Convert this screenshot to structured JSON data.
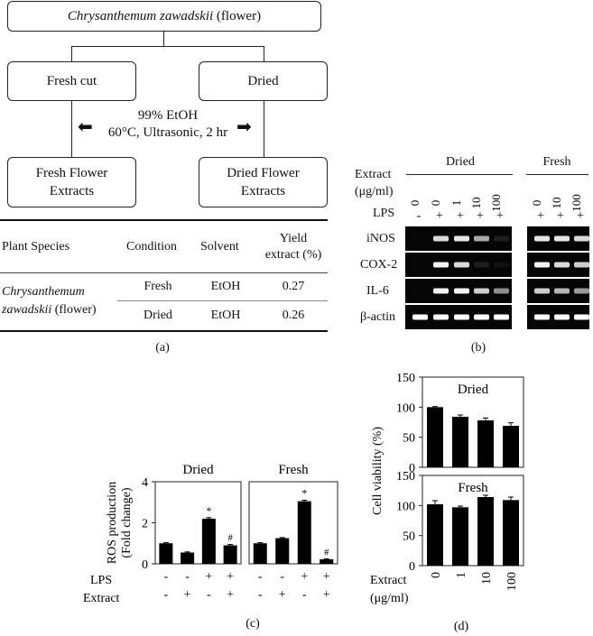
{
  "panel_a": {
    "top_box": {
      "species": "Chrysanthemum zawadskii",
      "part": "(flower)"
    },
    "left_box": "Fresh cut",
    "right_box": "Dried",
    "method_line1": "99% EtOH",
    "method_line2": "60°C, Ultrasonic, 2 hr",
    "left_extract": [
      "Fresh Flower",
      "Extracts"
    ],
    "right_extract": [
      "Dried Flower",
      "Extracts"
    ],
    "table": {
      "headers": [
        "Plant Species",
        "Condition",
        "Solvent",
        "Yield",
        "extract (%)"
      ],
      "species_italic": [
        "Chrysanthemum",
        "zawadskii"
      ],
      "species_suffix": "(flower)",
      "rows": [
        {
          "condition": "Fresh",
          "solvent": "EtOH",
          "yield": "0.27"
        },
        {
          "condition": "Dried",
          "solvent": "EtOH",
          "yield": "0.26"
        }
      ]
    },
    "label": "(a)"
  },
  "panel_b": {
    "dried_title": "Dried",
    "fresh_title": "Fresh",
    "extract_label": [
      "Extract",
      "(μg/ml)"
    ],
    "lps_label": "LPS",
    "dried_conc": [
      "0",
      "0",
      "1",
      "10",
      "100"
    ],
    "dried_lps": [
      "-",
      "+",
      "+",
      "+",
      "+"
    ],
    "fresh_conc": [
      "0",
      "10",
      "100"
    ],
    "fresh_lps": [
      "+",
      "+",
      "+"
    ],
    "genes": [
      "iNOS",
      "COX-2",
      "IL-6",
      "β-actin"
    ],
    "band_intensity": {
      "dried": [
        [
          0,
          0.85,
          0.9,
          0.65,
          0.1
        ],
        [
          0,
          0.95,
          0.85,
          0.1,
          0.05
        ],
        [
          0,
          0.95,
          0.95,
          0.8,
          0.55
        ],
        [
          1,
          1,
          1,
          1,
          1
        ]
      ],
      "fresh": [
        [
          0.9,
          0.9,
          0.85
        ],
        [
          0.95,
          0.85,
          0.8
        ],
        [
          0.8,
          0.7,
          0.6
        ],
        [
          1,
          1,
          1
        ]
      ]
    },
    "label": "(b)"
  },
  "chart_data": [
    {
      "type": "bar",
      "panel": "c",
      "ylabel": "ROS production (Fold change)",
      "ylim": [
        0,
        4
      ],
      "yticks": [
        0,
        2,
        4
      ],
      "row_labels": [
        "LPS",
        "Extract"
      ],
      "lps": [
        "-",
        "-",
        "+",
        "+"
      ],
      "extract": [
        "-",
        "+",
        "-",
        "+"
      ],
      "subplots": [
        {
          "title": "Dried",
          "values": [
            1.0,
            0.55,
            2.2,
            0.9
          ],
          "errors": [
            0.03,
            0.03,
            0.05,
            0.04
          ],
          "marks": [
            "",
            "",
            "*",
            "#"
          ]
        },
        {
          "title": "Fresh",
          "values": [
            1.0,
            1.25,
            3.05,
            0.22
          ],
          "errors": [
            0.03,
            0.03,
            0.05,
            0.03
          ],
          "marks": [
            "",
            "",
            "*",
            "#"
          ]
        }
      ],
      "bar_color": "#000000",
      "label": "(c)"
    },
    {
      "type": "bar",
      "panel": "d",
      "ylabel": "Cell viability (%)",
      "ylim": [
        0,
        150
      ],
      "yticks": [
        0,
        50,
        100,
        150
      ],
      "xlabel": "Extract (μg/ml)",
      "categories": [
        "0",
        "1",
        "10",
        "100"
      ],
      "subplots": [
        {
          "title": "Dried",
          "values": [
            100,
            84,
            78,
            69
          ],
          "errors": [
            1,
            3,
            4,
            5
          ]
        },
        {
          "title": "Fresh",
          "values": [
            102,
            97,
            114,
            109
          ],
          "errors": [
            6,
            2,
            3,
            5
          ]
        }
      ],
      "bar_color": "#000000",
      "label": "(d)"
    }
  ]
}
